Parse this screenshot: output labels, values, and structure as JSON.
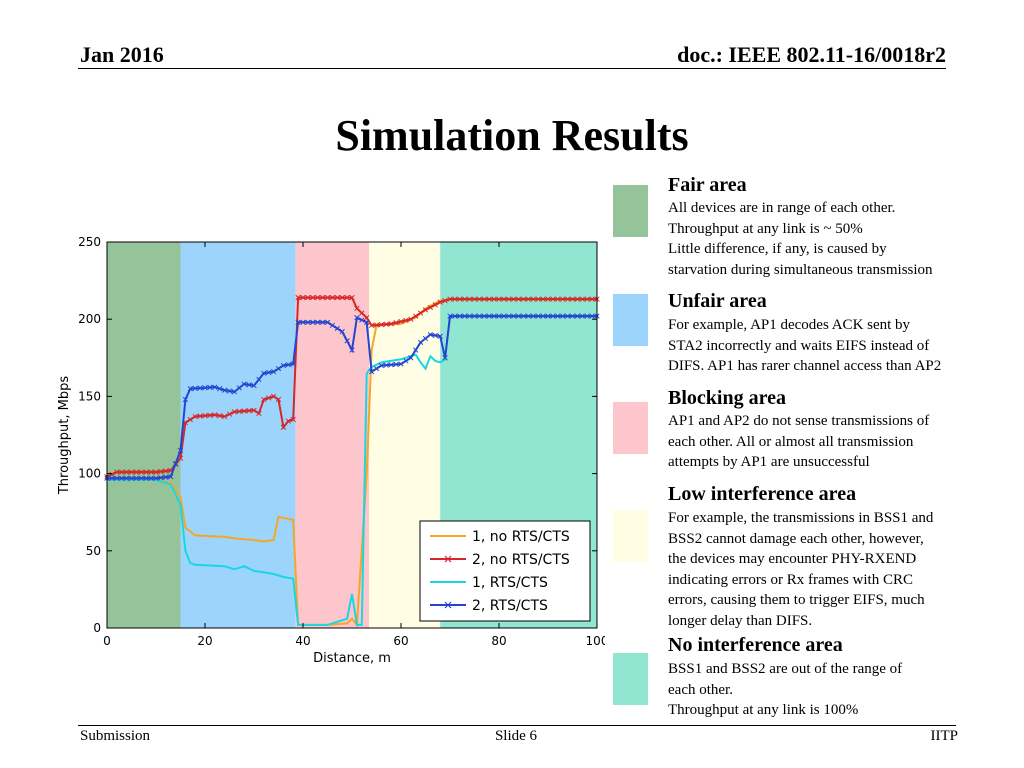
{
  "header": {
    "date": "Jan 2016",
    "doc": "doc.: IEEE 802.11-16/0018r2"
  },
  "title": "Simulation Results",
  "footer": {
    "left": "Submission",
    "center": "Slide 6",
    "right": "IITP"
  },
  "areas": [
    {
      "heading": "Fair area",
      "color": "#95c39a",
      "lines": [
        "All devices are in range of each other.",
        "Throughput at any link is ~ 50%",
        "Little difference, if any, is caused by",
        "starvation during simultaneous transmission"
      ]
    },
    {
      "heading": "Unfair area",
      "color": "#9dd4fb",
      "lines": [
        "For example, AP1 decodes ACK sent by",
        "STA2 incorrectly and waits EIFS instead of",
        "DIFS. AP1 has rarer channel access than AP2"
      ]
    },
    {
      "heading": "Blocking area",
      "color": "#fdc6cc",
      "lines": [
        "AP1 and AP2 do not sense transmissions of",
        "each other. All or almost all transmission",
        "attempts by AP1 are unsuccessful"
      ]
    },
    {
      "heading": "Low interference area",
      "color": "#fffde4",
      "lines": [
        "For example, the transmissions in BSS1 and",
        "BSS2 cannot damage each other, however,",
        "the devices may encounter PHY-RXEND",
        "indicating errors or Rx frames with CRC",
        "errors, causing them to trigger EIFS, much",
        "longer delay than DIFS."
      ]
    },
    {
      "heading": "No interference area",
      "color": "#91e6d2",
      "lines": [
        "BSS1 and BSS2 are out of the range of",
        "each other.",
        "Throughput at any link is 100%"
      ]
    }
  ],
  "chart_data": {
    "type": "line",
    "xlabel": "Distance, m",
    "ylabel": "Throughput, Mbps",
    "xlim": [
      0,
      100
    ],
    "ylim": [
      0,
      250
    ],
    "xticks": [
      0,
      20,
      40,
      60,
      80,
      100
    ],
    "yticks": [
      0,
      50,
      100,
      150,
      200,
      250
    ],
    "legend_position": "lower-right",
    "regions": [
      {
        "name": "Fair area",
        "x0": 0,
        "x1": 15,
        "color": "#95c39a"
      },
      {
        "name": "Unfair area",
        "x0": 15,
        "x1": 38.5,
        "color": "#9dd4fb"
      },
      {
        "name": "Blocking area",
        "x0": 38.5,
        "x1": 53.5,
        "color": "#fdc6cc"
      },
      {
        "name": "Low interference area",
        "x0": 53.5,
        "x1": 68,
        "color": "#fffde4"
      },
      {
        "name": "No interference area",
        "x0": 68,
        "x1": 100,
        "color": "#91e6d2"
      }
    ],
    "series": [
      {
        "name": "1, no RTS/CTS",
        "color": "#f5a623",
        "marker": "none",
        "points": [
          [
            0,
            97
          ],
          [
            5,
            96
          ],
          [
            10,
            96
          ],
          [
            13,
            94
          ],
          [
            15,
            85
          ],
          [
            16,
            65
          ],
          [
            18,
            60
          ],
          [
            24,
            59
          ],
          [
            26,
            58
          ],
          [
            30,
            57
          ],
          [
            32,
            56
          ],
          [
            34,
            57
          ],
          [
            35,
            72
          ],
          [
            38,
            70
          ],
          [
            39,
            2
          ],
          [
            45,
            2
          ],
          [
            49,
            3
          ],
          [
            50,
            6
          ],
          [
            51,
            2
          ],
          [
            53,
            100
          ],
          [
            54,
            180
          ],
          [
            55,
            196
          ],
          [
            60,
            197
          ],
          [
            63,
            201
          ],
          [
            65,
            207
          ],
          [
            68,
            212
          ],
          [
            70,
            213
          ],
          [
            100,
            213
          ]
        ]
      },
      {
        "name": "2, no RTS/CTS",
        "color": "#d62728",
        "marker": "x",
        "points": [
          [
            0,
            98
          ],
          [
            2,
            101
          ],
          [
            10,
            101
          ],
          [
            13,
            102
          ],
          [
            15,
            110
          ],
          [
            16,
            133
          ],
          [
            18,
            137
          ],
          [
            22,
            138
          ],
          [
            24,
            137
          ],
          [
            26,
            140
          ],
          [
            30,
            141
          ],
          [
            31,
            139
          ],
          [
            32,
            148
          ],
          [
            34,
            150
          ],
          [
            35,
            148
          ],
          [
            36,
            130
          ],
          [
            37,
            134
          ],
          [
            38,
            135
          ],
          [
            39,
            214
          ],
          [
            50,
            214
          ],
          [
            51,
            207
          ],
          [
            53,
            201
          ],
          [
            54,
            196
          ],
          [
            58,
            197
          ],
          [
            62,
            200
          ],
          [
            65,
            206
          ],
          [
            68,
            211
          ],
          [
            70,
            213
          ],
          [
            100,
            213
          ]
        ]
      },
      {
        "name": "1, RTS/CTS",
        "color": "#17d7e6",
        "marker": "none",
        "points": [
          [
            0,
            96
          ],
          [
            10,
            96
          ],
          [
            13,
            93
          ],
          [
            15,
            80
          ],
          [
            16,
            50
          ],
          [
            17,
            42
          ],
          [
            18,
            41
          ],
          [
            24,
            40
          ],
          [
            26,
            38
          ],
          [
            28,
            40
          ],
          [
            30,
            37
          ],
          [
            32,
            36
          ],
          [
            34,
            35
          ],
          [
            36,
            33
          ],
          [
            38,
            32
          ],
          [
            39,
            2
          ],
          [
            45,
            2
          ],
          [
            49,
            6
          ],
          [
            50,
            22
          ],
          [
            51,
            2
          ],
          [
            52,
            2
          ],
          [
            53,
            165
          ],
          [
            54,
            169
          ],
          [
            56,
            172
          ],
          [
            60,
            174
          ],
          [
            63,
            177
          ],
          [
            64,
            172
          ],
          [
            65,
            168
          ],
          [
            66,
            176
          ],
          [
            67,
            173
          ],
          [
            68,
            172
          ],
          [
            69,
            174
          ],
          [
            70,
            202
          ],
          [
            100,
            202
          ]
        ]
      },
      {
        "name": "2, RTS/CTS",
        "color": "#2545d0",
        "marker": "x",
        "points": [
          [
            0,
            97
          ],
          [
            10,
            97
          ],
          [
            13,
            98
          ],
          [
            15,
            115
          ],
          [
            16,
            148
          ],
          [
            17,
            155
          ],
          [
            22,
            156
          ],
          [
            24,
            154
          ],
          [
            26,
            153
          ],
          [
            28,
            158
          ],
          [
            30,
            157
          ],
          [
            32,
            165
          ],
          [
            34,
            166
          ],
          [
            36,
            170
          ],
          [
            38,
            171
          ],
          [
            39,
            198
          ],
          [
            45,
            198
          ],
          [
            48,
            192
          ],
          [
            50,
            180
          ],
          [
            51,
            201
          ],
          [
            53,
            198
          ],
          [
            54,
            166
          ],
          [
            56,
            170
          ],
          [
            60,
            171
          ],
          [
            62,
            175
          ],
          [
            64,
            185
          ],
          [
            66,
            190
          ],
          [
            68,
            189
          ],
          [
            69,
            175
          ],
          [
            70,
            202
          ],
          [
            100,
            202
          ]
        ]
      }
    ]
  }
}
